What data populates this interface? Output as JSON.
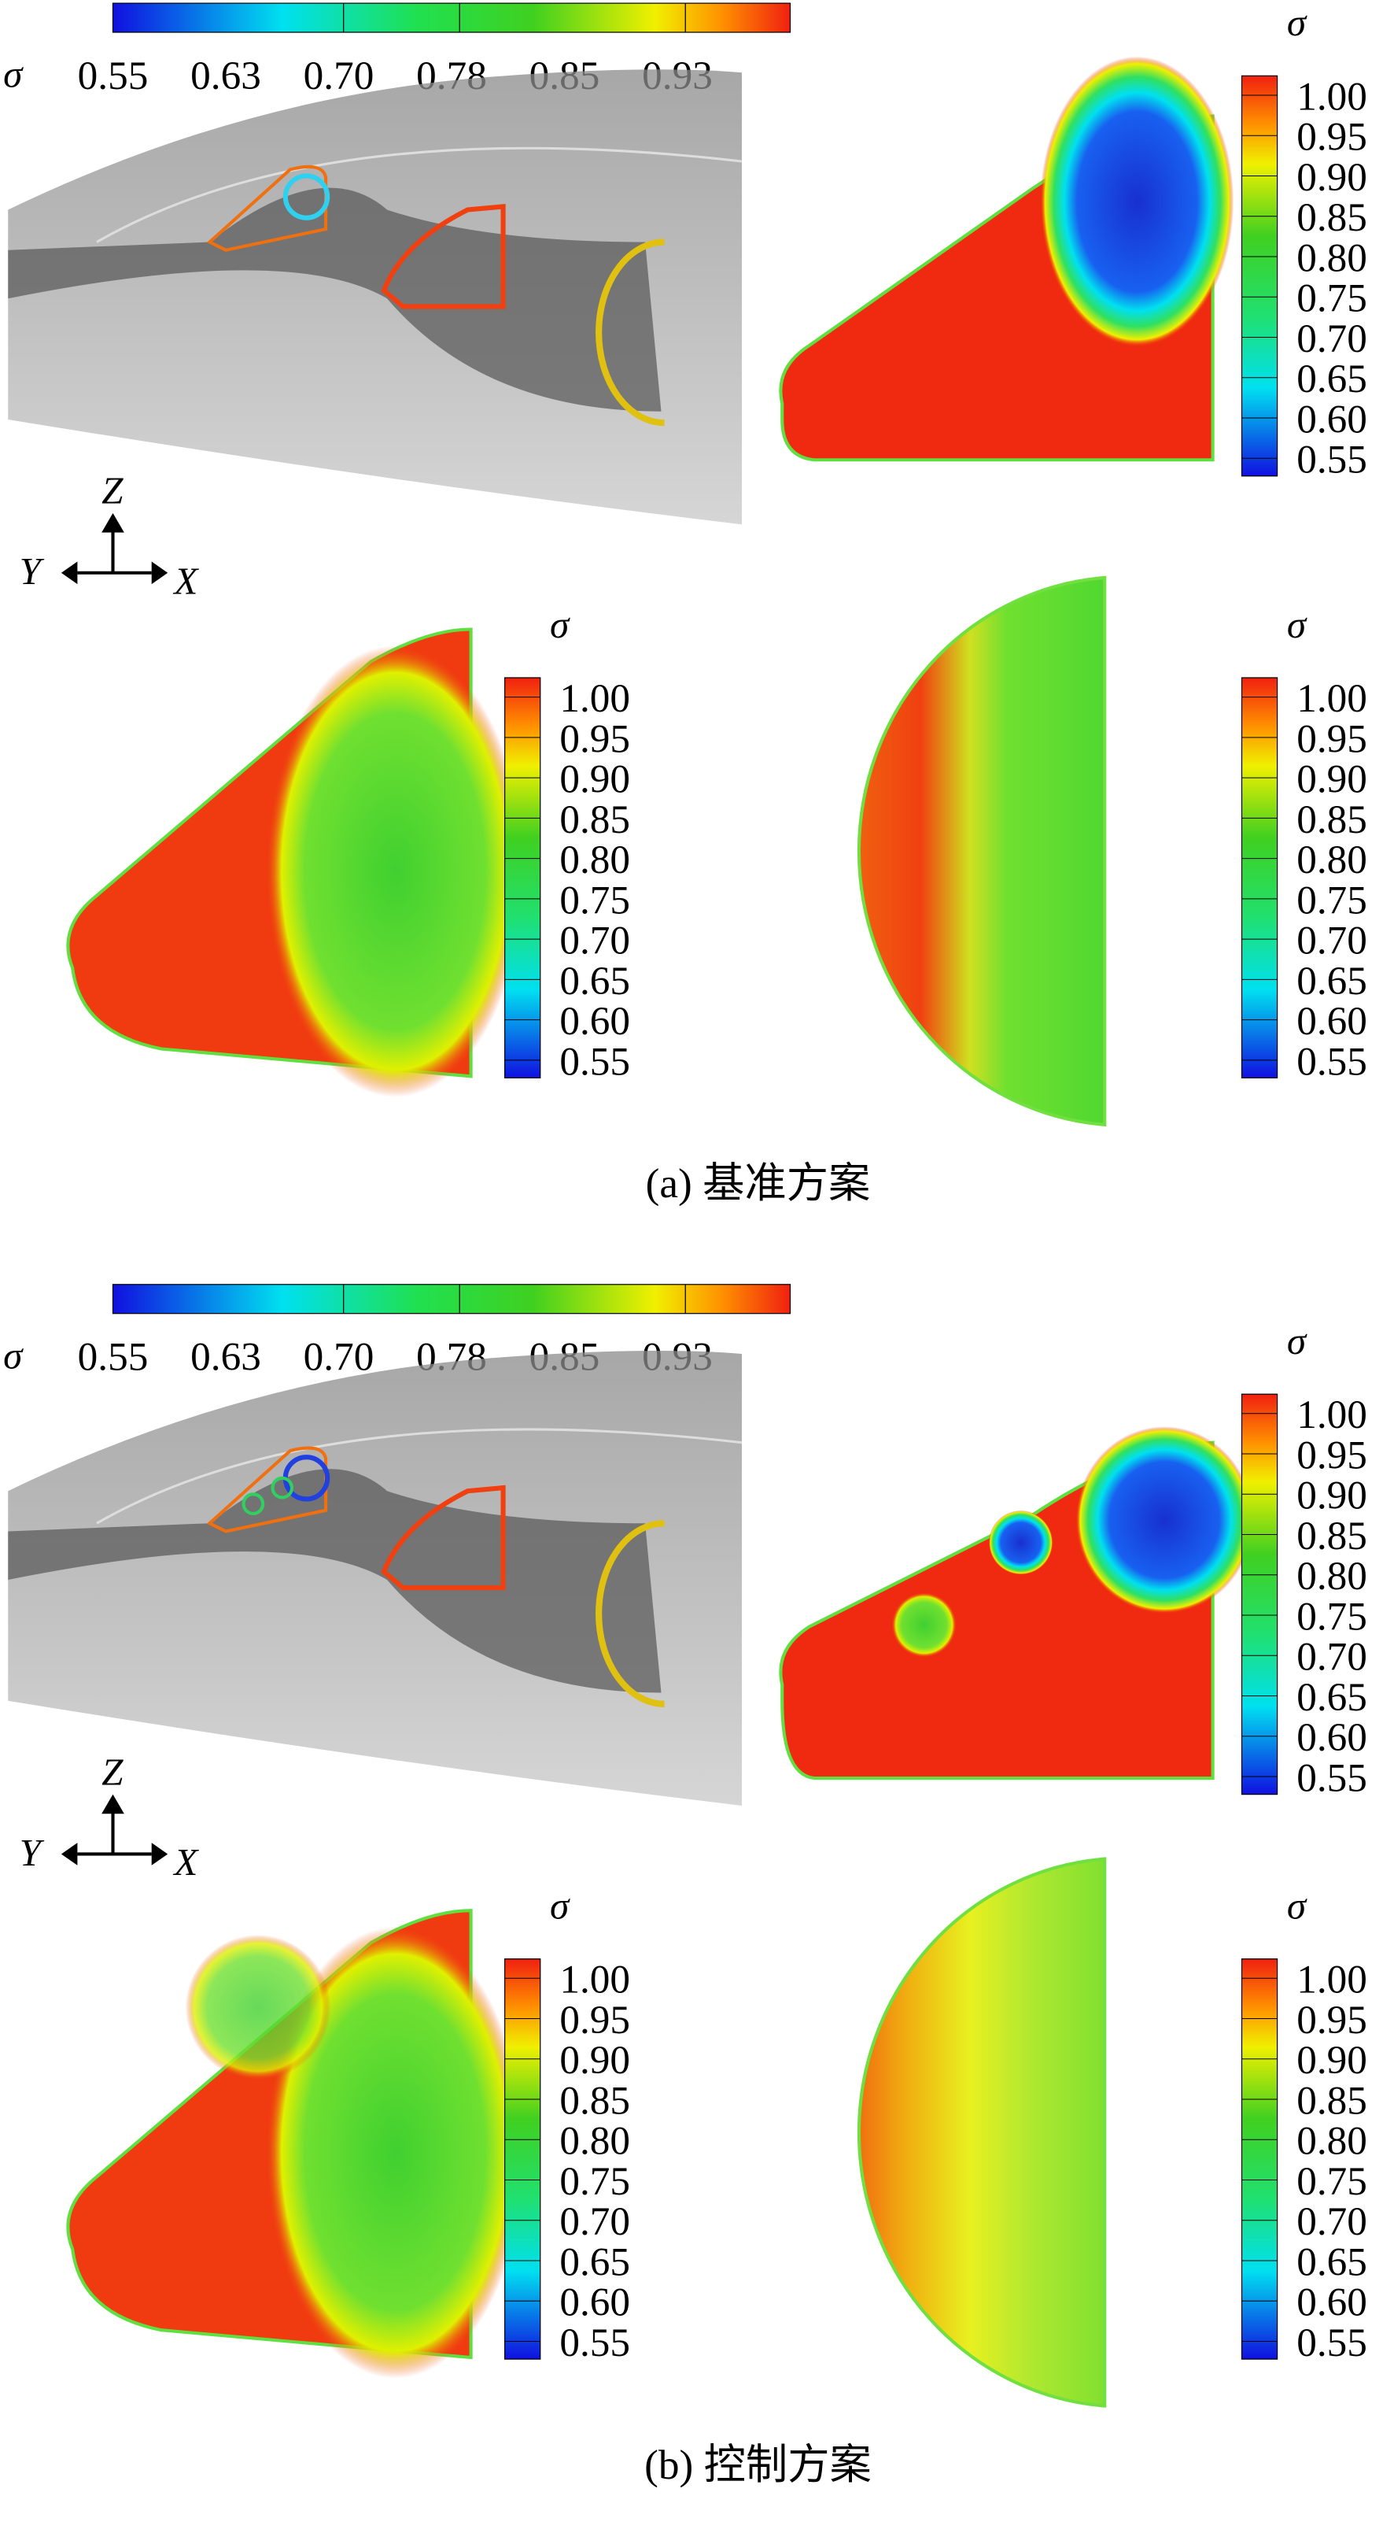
{
  "panels": [
    {
      "caption": "(a) 基准方案",
      "horizontal_colorbar": {
        "symbol": "σ",
        "ticks": [
          "0.55",
          "0.63",
          "0.70",
          "0.78",
          "0.85",
          "0.93"
        ]
      },
      "axes": {
        "z": "Z",
        "y": "Y",
        "x": "X"
      },
      "colorbars": [
        {
          "symbol": "σ",
          "ticks": [
            "1.00",
            "0.95",
            "0.90",
            "0.85",
            "0.80",
            "0.75",
            "0.70",
            "0.65",
            "0.60",
            "0.55"
          ]
        },
        {
          "symbol": "σ",
          "ticks": [
            "1.00",
            "0.95",
            "0.90",
            "0.85",
            "0.80",
            "0.75",
            "0.70",
            "0.65",
            "0.60",
            "0.55"
          ]
        },
        {
          "symbol": "σ",
          "ticks": [
            "1.00",
            "0.95",
            "0.90",
            "0.85",
            "0.80",
            "0.75",
            "0.70",
            "0.65",
            "0.60",
            "0.55"
          ]
        }
      ]
    },
    {
      "caption": "(b) 控制方案",
      "horizontal_colorbar": {
        "symbol": "σ",
        "ticks": [
          "0.55",
          "0.63",
          "0.70",
          "0.78",
          "0.85",
          "0.93"
        ]
      },
      "axes": {
        "z": "Z",
        "y": "Y",
        "x": "X"
      },
      "colorbars": [
        {
          "symbol": "σ",
          "ticks": [
            "1.00",
            "0.95",
            "0.90",
            "0.85",
            "0.80",
            "0.75",
            "0.70",
            "0.65",
            "0.60",
            "0.55"
          ]
        },
        {
          "symbol": "σ",
          "ticks": [
            "1.00",
            "0.95",
            "0.90",
            "0.85",
            "0.80",
            "0.75",
            "0.70",
            "0.65",
            "0.60",
            "0.55"
          ]
        },
        {
          "symbol": "σ",
          "ticks": [
            "1.00",
            "0.95",
            "0.90",
            "0.85",
            "0.80",
            "0.75",
            "0.70",
            "0.65",
            "0.60",
            "0.55"
          ]
        }
      ]
    }
  ]
}
